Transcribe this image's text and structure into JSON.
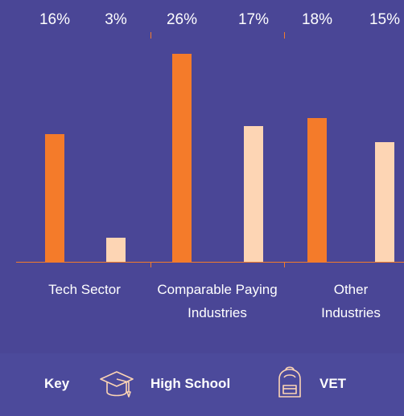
{
  "chart_data": {
    "type": "bar",
    "categories": [
      "Tech Sector",
      "Comparable Paying Industries",
      "Other Industries"
    ],
    "series": [
      {
        "name": "High School",
        "color": "#f47b2a",
        "values": [
          16,
          26,
          18
        ],
        "value_labels": [
          "16%",
          "26%",
          "18%"
        ]
      },
      {
        "name": "VET",
        "color": "#fdd5b4",
        "values": [
          3,
          17,
          15
        ],
        "value_labels": [
          "3%",
          "17%",
          "15%"
        ]
      }
    ],
    "legend_title": "Key"
  }
}
